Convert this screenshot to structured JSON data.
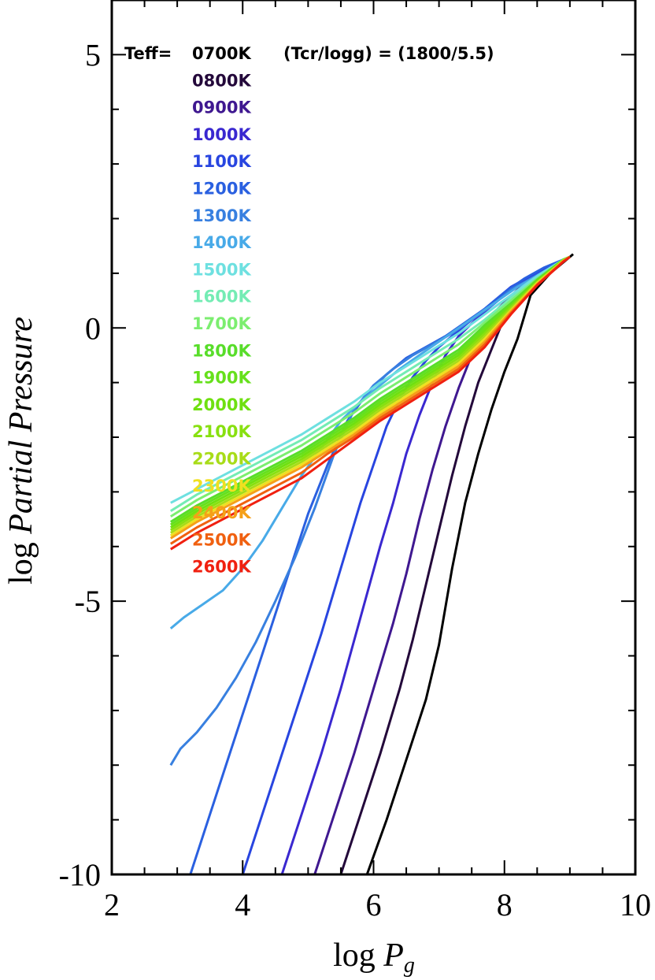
{
  "chart_data": {
    "type": "line",
    "title": "",
    "xlabel": "log P_g",
    "ylabel": "log Partial Pressure",
    "xlim": [
      2,
      10
    ],
    "ylim": [
      -10,
      6
    ],
    "x_ticks": [
      {
        "value": 2,
        "label": "2"
      },
      {
        "value": 4,
        "label": "4"
      },
      {
        "value": 6,
        "label": "6"
      },
      {
        "value": 8,
        "label": "8"
      },
      {
        "value": 10,
        "label": "10"
      }
    ],
    "y_ticks": [
      {
        "value": -10,
        "label": "-10"
      },
      {
        "value": -5,
        "label": "-5"
      },
      {
        "value": 0,
        "label": "0"
      },
      {
        "value": 5,
        "label": "5"
      }
    ],
    "annotations": {
      "teff_header": "Teff=",
      "model_params": "(Tcr/logg) = (1800/5.5)"
    },
    "legend_position": "top-left",
    "series": [
      {
        "name": "0700K",
        "color": "#000000",
        "x": [
          5.9,
          6.2,
          6.5,
          6.8,
          7.0,
          7.2,
          7.4,
          7.6,
          7.8,
          8.0,
          8.2,
          8.4,
          8.7,
          9.0,
          9.05
        ],
        "y": [
          -10,
          -9.0,
          -7.9,
          -6.8,
          -5.8,
          -4.4,
          -3.2,
          -2.3,
          -1.5,
          -0.8,
          -0.2,
          0.6,
          1.0,
          1.3,
          1.35
        ]
      },
      {
        "name": "0800K",
        "color": "#23083a",
        "x": [
          5.5,
          5.8,
          6.1,
          6.4,
          6.6,
          6.8,
          7.0,
          7.2,
          7.4,
          7.6,
          7.8,
          8.0,
          8.2,
          8.4,
          8.6,
          8.8,
          9.0
        ],
        "y": [
          -10,
          -8.9,
          -7.8,
          -6.6,
          -5.7,
          -4.7,
          -3.7,
          -2.7,
          -1.8,
          -1.0,
          -0.4,
          0.2,
          0.55,
          0.8,
          1.0,
          1.15,
          1.3
        ]
      },
      {
        "name": "0900K",
        "color": "#3f1890",
        "x": [
          5.1,
          5.4,
          5.7,
          6.0,
          6.3,
          6.5,
          6.7,
          6.9,
          7.1,
          7.3,
          7.5,
          7.7,
          7.9,
          8.2,
          8.5,
          8.8,
          9.0
        ],
        "y": [
          -10,
          -8.9,
          -7.8,
          -6.6,
          -5.4,
          -4.5,
          -3.5,
          -2.6,
          -1.8,
          -1.1,
          -0.5,
          0.0,
          0.35,
          0.7,
          0.95,
          1.15,
          1.3
        ]
      },
      {
        "name": "1000K",
        "color": "#3a28d0",
        "x": [
          4.6,
          4.9,
          5.2,
          5.5,
          5.8,
          6.1,
          6.3,
          6.5,
          6.7,
          6.9,
          7.1,
          7.3,
          7.6,
          7.9,
          8.2,
          8.5,
          8.8,
          9.0
        ],
        "y": [
          -10,
          -8.9,
          -7.8,
          -6.6,
          -5.3,
          -4.0,
          -3.2,
          -2.3,
          -1.6,
          -1.0,
          -0.5,
          -0.15,
          0.2,
          0.5,
          0.8,
          1.0,
          1.15,
          1.3
        ]
      },
      {
        "name": "1100K",
        "color": "#2845e0",
        "x": [
          4.0,
          4.3,
          4.6,
          4.9,
          5.2,
          5.5,
          5.8,
          6.0,
          6.2,
          6.4,
          6.6,
          6.8,
          7.0,
          7.2,
          7.5,
          7.8,
          8.1,
          8.4,
          8.7,
          9.0
        ],
        "y": [
          -10,
          -8.9,
          -7.8,
          -6.7,
          -5.6,
          -4.4,
          -3.2,
          -2.5,
          -1.8,
          -1.3,
          -0.9,
          -0.6,
          -0.35,
          -0.15,
          0.15,
          0.45,
          0.75,
          0.95,
          1.12,
          1.3
        ]
      },
      {
        "name": "1200K",
        "color": "#2a60e0",
        "x": [
          3.2,
          3.5,
          3.8,
          4.1,
          4.4,
          4.7,
          5.0,
          5.3,
          5.6,
          5.9,
          6.2,
          6.5,
          6.8,
          7.1,
          7.4,
          7.7,
          8.0,
          8.3,
          8.6,
          8.9,
          9.0
        ],
        "y": [
          -10,
          -8.9,
          -7.8,
          -6.7,
          -5.6,
          -4.5,
          -3.4,
          -2.5,
          -1.7,
          -1.2,
          -0.85,
          -0.55,
          -0.35,
          -0.15,
          0.1,
          0.35,
          0.65,
          0.9,
          1.1,
          1.25,
          1.3
        ]
      },
      {
        "name": "1300K",
        "color": "#3880e0",
        "x": [
          2.9,
          3.05,
          3.3,
          3.6,
          3.9,
          4.2,
          4.5,
          4.8,
          5.1,
          5.4,
          5.7,
          6.0,
          6.3,
          6.6,
          6.9,
          7.2,
          7.5,
          7.8,
          8.1,
          8.4,
          8.7,
          9.0
        ],
        "y": [
          -8.0,
          -7.7,
          -7.4,
          -6.95,
          -6.4,
          -5.75,
          -5.0,
          -4.2,
          -3.3,
          -2.3,
          -1.5,
          -1.05,
          -0.75,
          -0.5,
          -0.3,
          -0.1,
          0.15,
          0.4,
          0.7,
          0.9,
          1.1,
          1.3
        ]
      },
      {
        "name": "1400K",
        "color": "#48aae8",
        "x": [
          2.9,
          3.1,
          3.4,
          3.7,
          4.0,
          4.3,
          4.6,
          4.9,
          5.2,
          5.5,
          5.8,
          6.1,
          6.4,
          6.7,
          7.0,
          7.3,
          7.6,
          7.9,
          8.2,
          8.5,
          8.8,
          9.0
        ],
        "y": [
          -5.5,
          -5.3,
          -5.05,
          -4.8,
          -4.4,
          -3.9,
          -3.3,
          -2.7,
          -2.2,
          -1.7,
          -1.35,
          -1.05,
          -0.75,
          -0.5,
          -0.25,
          0.0,
          0.25,
          0.5,
          0.75,
          0.95,
          1.15,
          1.3
        ]
      },
      {
        "name": "1500K",
        "color": "#6ee0e0",
        "x": [
          2.9,
          3.3,
          3.7,
          4.1,
          4.5,
          4.9,
          5.3,
          5.7,
          6.1,
          6.5,
          6.9,
          7.3,
          7.7,
          8.1,
          8.5,
          8.9,
          9.0
        ],
        "y": [
          -3.2,
          -2.95,
          -2.7,
          -2.45,
          -2.2,
          -1.95,
          -1.65,
          -1.35,
          -1.0,
          -0.7,
          -0.4,
          -0.1,
          0.25,
          0.6,
          0.95,
          1.25,
          1.3
        ]
      },
      {
        "name": "1600K",
        "color": "#74ecb4",
        "x": [
          2.9,
          3.3,
          3.7,
          4.1,
          4.5,
          4.9,
          5.3,
          5.7,
          6.1,
          6.5,
          6.9,
          7.3,
          7.7,
          8.1,
          8.5,
          8.9,
          9.0
        ],
        "y": [
          -3.35,
          -3.05,
          -2.8,
          -2.55,
          -2.3,
          -2.05,
          -1.75,
          -1.45,
          -1.1,
          -0.8,
          -0.5,
          -0.2,
          0.15,
          0.55,
          0.9,
          1.25,
          1.3
        ]
      },
      {
        "name": "1700K",
        "color": "#7cee70",
        "x": [
          2.9,
          3.3,
          3.7,
          4.1,
          4.5,
          4.9,
          5.3,
          5.7,
          6.1,
          6.5,
          6.9,
          7.3,
          7.7,
          8.1,
          8.5,
          8.9,
          9.0
        ],
        "y": [
          -3.45,
          -3.15,
          -2.9,
          -2.65,
          -2.4,
          -2.15,
          -1.85,
          -1.55,
          -1.2,
          -0.9,
          -0.6,
          -0.3,
          0.1,
          0.5,
          0.9,
          1.25,
          1.3
        ]
      },
      {
        "name": "1800K",
        "color": "#58dd2a",
        "x": [
          2.9,
          3.3,
          3.7,
          4.1,
          4.5,
          4.9,
          5.3,
          5.7,
          6.1,
          6.5,
          6.9,
          7.3,
          7.7,
          8.1,
          8.5,
          8.9,
          9.0
        ],
        "y": [
          -3.55,
          -3.25,
          -3.0,
          -2.75,
          -2.5,
          -2.25,
          -1.95,
          -1.65,
          -1.3,
          -1.0,
          -0.7,
          -0.4,
          0.05,
          0.45,
          0.88,
          1.25,
          1.3
        ]
      },
      {
        "name": "1900K",
        "color": "#66e01c",
        "x": [
          2.9,
          3.3,
          3.7,
          4.1,
          4.5,
          4.9,
          5.3,
          5.7,
          6.1,
          6.5,
          6.9,
          7.3,
          7.7,
          8.1,
          8.5,
          8.9,
          9.0
        ],
        "y": [
          -3.6,
          -3.3,
          -3.05,
          -2.8,
          -2.55,
          -2.3,
          -2.0,
          -1.7,
          -1.35,
          -1.05,
          -0.75,
          -0.45,
          0.0,
          0.42,
          0.86,
          1.24,
          1.3
        ]
      },
      {
        "name": "2000K",
        "color": "#6fe010",
        "x": [
          2.9,
          3.3,
          3.7,
          4.1,
          4.5,
          4.9,
          5.3,
          5.7,
          6.1,
          6.5,
          6.9,
          7.3,
          7.7,
          8.1,
          8.5,
          8.9,
          9.0
        ],
        "y": [
          -3.65,
          -3.35,
          -3.1,
          -2.85,
          -2.6,
          -2.35,
          -2.05,
          -1.75,
          -1.4,
          -1.1,
          -0.8,
          -0.5,
          -0.05,
          0.4,
          0.85,
          1.24,
          1.3
        ]
      },
      {
        "name": "2100K",
        "color": "#88e010",
        "x": [
          2.9,
          3.3,
          3.7,
          4.1,
          4.5,
          4.9,
          5.3,
          5.7,
          6.1,
          6.5,
          6.9,
          7.3,
          7.7,
          8.1,
          8.5,
          8.9,
          9.0
        ],
        "y": [
          -3.7,
          -3.4,
          -3.15,
          -2.9,
          -2.65,
          -2.4,
          -2.1,
          -1.8,
          -1.45,
          -1.15,
          -0.85,
          -0.55,
          -0.1,
          0.38,
          0.84,
          1.24,
          1.3
        ]
      },
      {
        "name": "2200K",
        "color": "#a8dc18",
        "x": [
          2.9,
          3.3,
          3.7,
          4.1,
          4.5,
          4.9,
          5.3,
          5.7,
          6.1,
          6.5,
          6.9,
          7.3,
          7.7,
          8.1,
          8.5,
          8.9,
          9.0
        ],
        "y": [
          -3.75,
          -3.45,
          -3.2,
          -2.95,
          -2.7,
          -2.45,
          -2.15,
          -1.85,
          -1.5,
          -1.2,
          -0.9,
          -0.6,
          -0.15,
          0.35,
          0.83,
          1.23,
          1.3
        ]
      },
      {
        "name": "2300K",
        "color": "#f0e020",
        "x": [
          2.9,
          3.3,
          3.7,
          4.1,
          4.5,
          4.9,
          5.3,
          5.7,
          6.1,
          6.5,
          6.9,
          7.3,
          7.7,
          8.1,
          8.5,
          8.9,
          9.0
        ],
        "y": [
          -3.8,
          -3.5,
          -3.25,
          -3.0,
          -2.75,
          -2.5,
          -2.2,
          -1.9,
          -1.55,
          -1.25,
          -0.95,
          -0.65,
          -0.2,
          0.32,
          0.82,
          1.23,
          1.3
        ]
      },
      {
        "name": "2400K",
        "color": "#f5a018",
        "x": [
          2.9,
          3.3,
          3.7,
          4.1,
          4.5,
          4.9,
          5.3,
          5.7,
          6.1,
          6.5,
          6.9,
          7.3,
          7.7,
          8.1,
          8.5,
          8.9,
          9.0
        ],
        "y": [
          -3.85,
          -3.55,
          -3.3,
          -3.05,
          -2.8,
          -2.55,
          -2.25,
          -1.95,
          -1.6,
          -1.3,
          -1.0,
          -0.7,
          -0.25,
          0.3,
          0.8,
          1.22,
          1.3
        ]
      },
      {
        "name": "2500K",
        "color": "#f06010",
        "x": [
          2.9,
          3.3,
          3.7,
          4.1,
          4.5,
          4.9,
          5.3,
          5.7,
          6.1,
          6.5,
          6.9,
          7.3,
          7.7,
          8.1,
          8.5,
          8.9,
          9.0
        ],
        "y": [
          -3.95,
          -3.65,
          -3.4,
          -3.15,
          -2.9,
          -2.65,
          -2.3,
          -2.0,
          -1.65,
          -1.35,
          -1.05,
          -0.75,
          -0.3,
          0.27,
          0.79,
          1.22,
          1.3
        ]
      },
      {
        "name": "2600K",
        "color": "#f02010",
        "x": [
          2.9,
          3.3,
          3.7,
          4.1,
          4.5,
          4.9,
          5.3,
          5.7,
          6.1,
          6.5,
          6.9,
          7.3,
          7.7,
          8.1,
          8.5,
          8.9,
          9.0
        ],
        "y": [
          -4.05,
          -3.75,
          -3.5,
          -3.25,
          -3.0,
          -2.75,
          -2.4,
          -2.05,
          -1.7,
          -1.4,
          -1.1,
          -0.8,
          -0.35,
          0.25,
          0.78,
          1.21,
          1.3
        ]
      }
    ]
  }
}
